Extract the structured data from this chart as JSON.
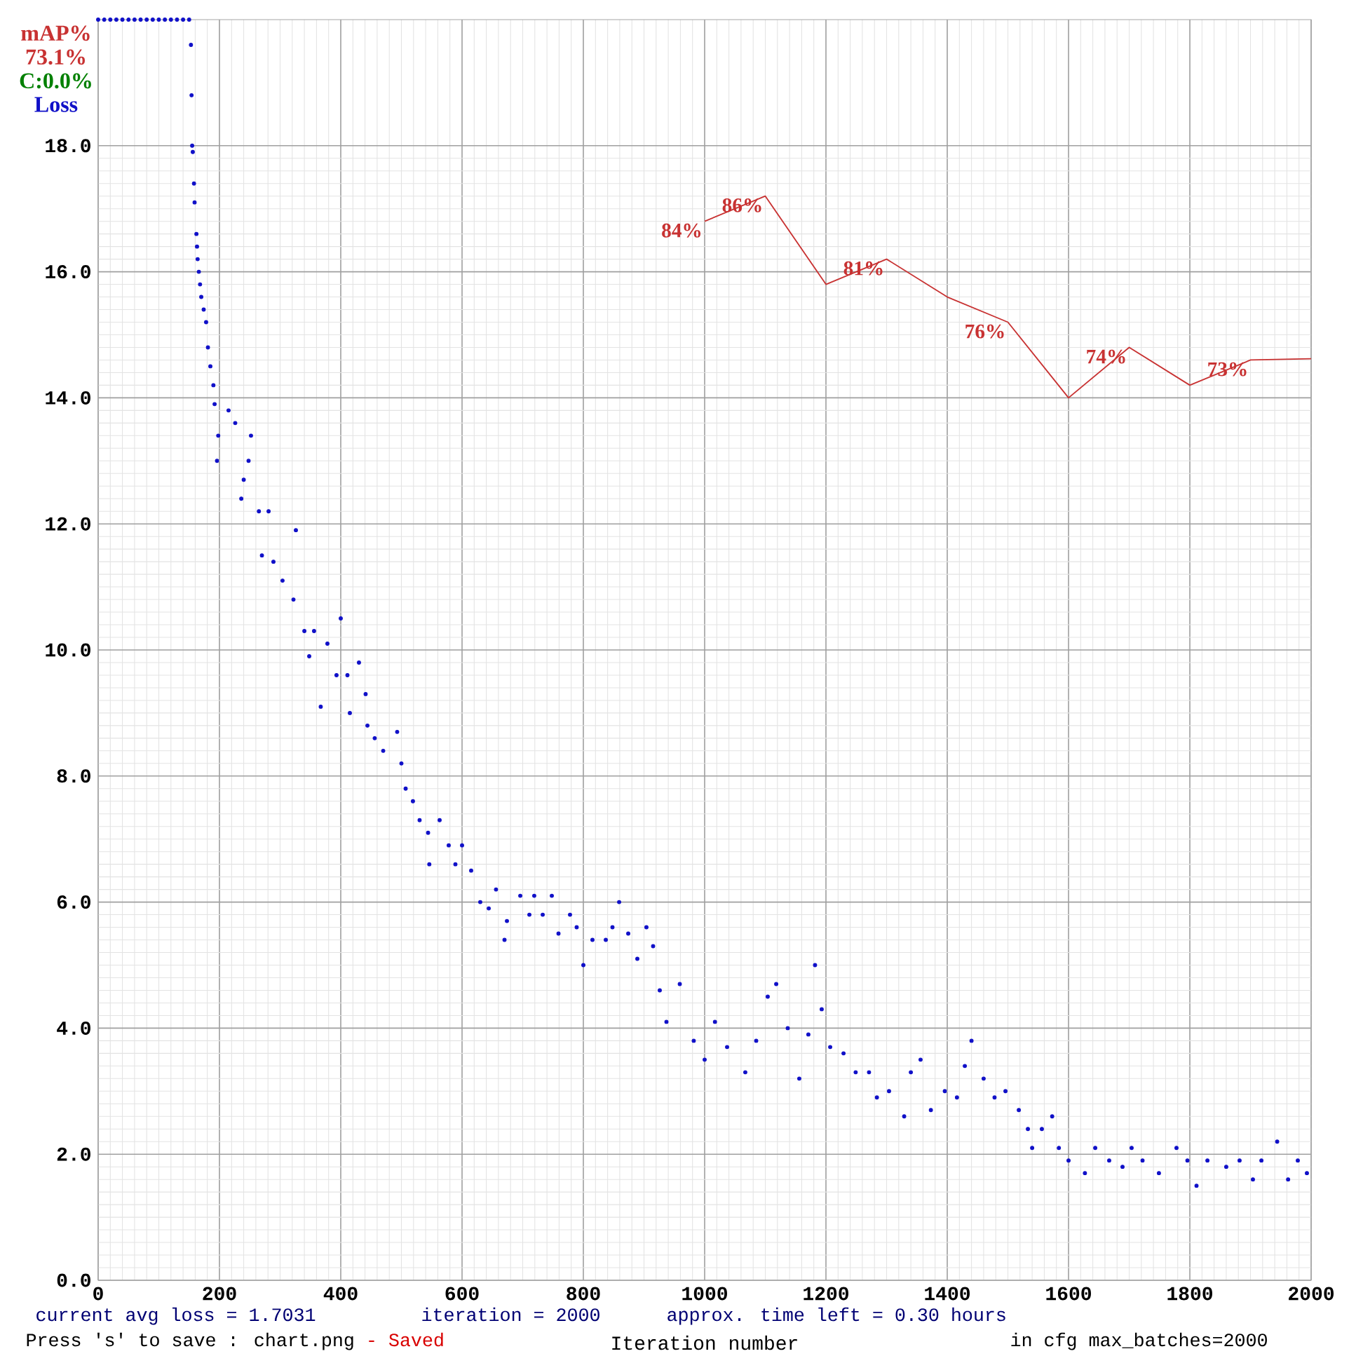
{
  "chart_data": {
    "type": "scatter",
    "xlabel": "Iteration number",
    "xlim": [
      0,
      2000
    ],
    "xticks": [
      0,
      200,
      400,
      600,
      800,
      1000,
      1200,
      1400,
      1600,
      1800,
      2000
    ],
    "ylim": [
      0,
      20
    ],
    "yticks": [
      {
        "value": 0,
        "label": "0.0"
      },
      {
        "value": 2,
        "label": "2.0"
      },
      {
        "value": 4,
        "label": "4.0"
      },
      {
        "value": 6,
        "label": "6.0"
      },
      {
        "value": 8,
        "label": "8.0"
      },
      {
        "value": 10,
        "label": "10.0"
      },
      {
        "value": 12,
        "label": "12.0"
      },
      {
        "value": 14,
        "label": "14.0"
      },
      {
        "value": 16,
        "label": "16.0"
      },
      {
        "value": 18,
        "label": "18.0"
      }
    ],
    "y2lim": [
      0,
      100
    ],
    "grid": true,
    "legend": "top left",
    "series": [
      {
        "name": "Loss",
        "color": "#1010c8",
        "x": [
          0,
          10,
          20,
          30,
          40,
          50,
          60,
          70,
          80,
          90,
          100,
          110,
          120,
          130,
          140,
          150,
          153,
          154,
          155,
          156,
          158,
          159,
          162,
          163,
          164,
          166,
          168,
          170,
          174,
          178,
          181,
          185,
          190,
          192,
          196,
          198,
          215,
          226,
          236,
          240,
          248,
          252,
          265,
          270,
          281,
          289,
          304,
          322,
          326,
          340,
          348,
          356,
          367,
          378,
          393,
          400,
          411,
          415,
          430,
          441,
          444,
          456,
          470,
          493,
          500,
          507,
          519,
          530,
          544,
          546,
          563,
          578,
          589,
          600,
          615,
          630,
          644,
          656,
          670,
          674,
          696,
          711,
          719,
          733,
          748,
          759,
          778,
          789,
          800,
          815,
          837,
          848,
          859,
          874,
          889,
          904,
          915,
          926,
          937,
          959,
          982,
          1000,
          1017,
          1037,
          1067,
          1085,
          1104,
          1118,
          1137,
          1156,
          1171,
          1182,
          1193,
          1207,
          1229,
          1249,
          1271,
          1284,
          1304,
          1329,
          1340,
          1356,
          1373,
          1396,
          1416,
          1429,
          1440,
          1460,
          1478,
          1496,
          1518,
          1533,
          1540,
          1556,
          1573,
          1584,
          1600,
          1627,
          1644,
          1667,
          1689,
          1704,
          1722,
          1749,
          1778,
          1796,
          1811,
          1829,
          1860,
          1882,
          1904,
          1918,
          1944,
          1962,
          1978,
          1993
        ],
        "values": [
          20,
          20,
          20,
          20,
          20,
          20,
          20,
          20,
          20,
          20,
          20,
          20,
          20,
          20,
          20,
          20,
          19.6,
          18.8,
          18.0,
          17.9,
          17.4,
          17.1,
          16.6,
          16.4,
          16.2,
          16.0,
          15.8,
          15.6,
          15.4,
          15.2,
          14.8,
          14.5,
          14.2,
          13.9,
          13.0,
          13.4,
          13.8,
          13.6,
          12.4,
          12.7,
          13.0,
          13.4,
          12.2,
          11.5,
          12.2,
          11.4,
          11.1,
          10.8,
          11.9,
          10.3,
          9.9,
          10.3,
          9.1,
          10.1,
          9.6,
          10.5,
          9.6,
          9.0,
          9.8,
          9.3,
          8.8,
          8.6,
          8.4,
          8.7,
          8.2,
          7.8,
          7.6,
          7.3,
          7.1,
          6.6,
          7.3,
          6.9,
          6.6,
          6.9,
          6.5,
          6.0,
          5.9,
          6.2,
          5.4,
          5.7,
          6.1,
          5.8,
          6.1,
          5.8,
          6.1,
          5.5,
          5.8,
          5.6,
          5.0,
          5.4,
          5.4,
          5.6,
          6.0,
          5.5,
          5.1,
          5.6,
          5.3,
          4.6,
          4.1,
          4.7,
          3.8,
          3.5,
          4.1,
          3.7,
          3.3,
          3.8,
          4.5,
          4.7,
          4.0,
          3.2,
          3.9,
          5.0,
          4.3,
          3.7,
          3.6,
          3.3,
          3.3,
          2.9,
          3.0,
          2.6,
          3.3,
          3.5,
          2.7,
          3.0,
          2.9,
          3.4,
          3.8,
          3.2,
          2.9,
          3.0,
          2.7,
          2.4,
          2.1,
          2.4,
          2.6,
          2.1,
          1.9,
          1.7,
          2.1,
          1.9,
          1.8,
          2.1,
          1.9,
          1.7,
          2.1,
          1.9,
          1.5,
          1.9,
          1.8,
          1.9,
          1.6,
          1.9,
          2.2,
          1.6,
          1.9,
          1.7
        ]
      },
      {
        "name": "mAP%",
        "type": "line",
        "axis": "y2",
        "color": "#c83232",
        "x": [
          1000,
          1100,
          1200,
          1300,
          1400,
          1500,
          1600,
          1700,
          1800,
          1900,
          2000
        ],
        "values": [
          84,
          86,
          79,
          81,
          78,
          76,
          70,
          74,
          71,
          73,
          73.1
        ],
        "value_labels": [
          "84%",
          "86%",
          null,
          "81%",
          null,
          "76%",
          null,
          "74%",
          null,
          "73%",
          null
        ]
      }
    ],
    "annotations": [
      "73.1%",
      "C:0.0%",
      "current avg loss = 1.7031",
      "iteration = 2000",
      "approx. time left = 0.30 hours",
      "Press 's' to save : chart.png",
      "- Saved",
      "in cfg max_batches=2000"
    ]
  }
}
